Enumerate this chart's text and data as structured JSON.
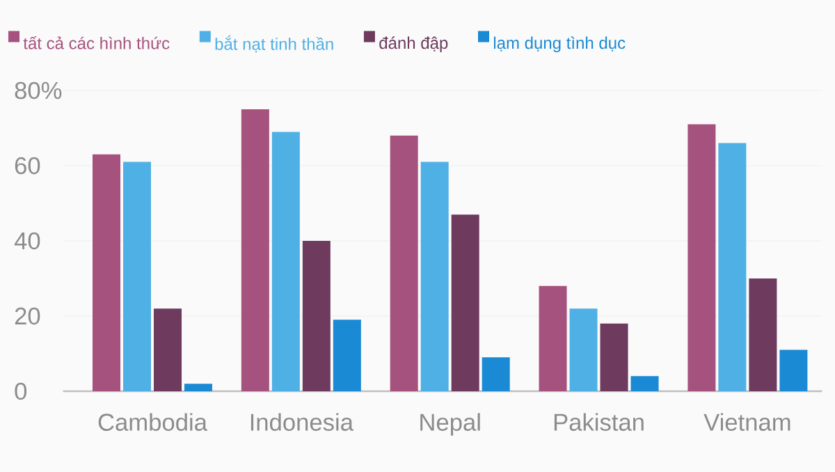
{
  "chart_data": {
    "type": "bar",
    "categories": [
      "Cambodia",
      "Indonesia",
      "Nepal",
      "Pakistan",
      "Vietnam"
    ],
    "series": [
      {
        "name": "tất cả các hình thức",
        "color": "#a6527f",
        "values": [
          63,
          75,
          68,
          28,
          71
        ]
      },
      {
        "name": "bắt nạt tinh thần",
        "color": "#4fb0e5",
        "values": [
          61,
          69,
          61,
          22,
          66
        ]
      },
      {
        "name": "đánh đập",
        "color": "#6e3a5e",
        "values": [
          22,
          40,
          47,
          18,
          30
        ]
      },
      {
        "name": "lạm dụng tình dục",
        "color": "#1a8ad4",
        "values": [
          2,
          19,
          9,
          4,
          11
        ]
      }
    ],
    "ylim": [
      0,
      80
    ],
    "yticks": [
      0,
      20,
      40,
      60,
      {
        "value": 80,
        "label": "80%"
      }
    ],
    "grid": "y",
    "legend": "top left"
  }
}
